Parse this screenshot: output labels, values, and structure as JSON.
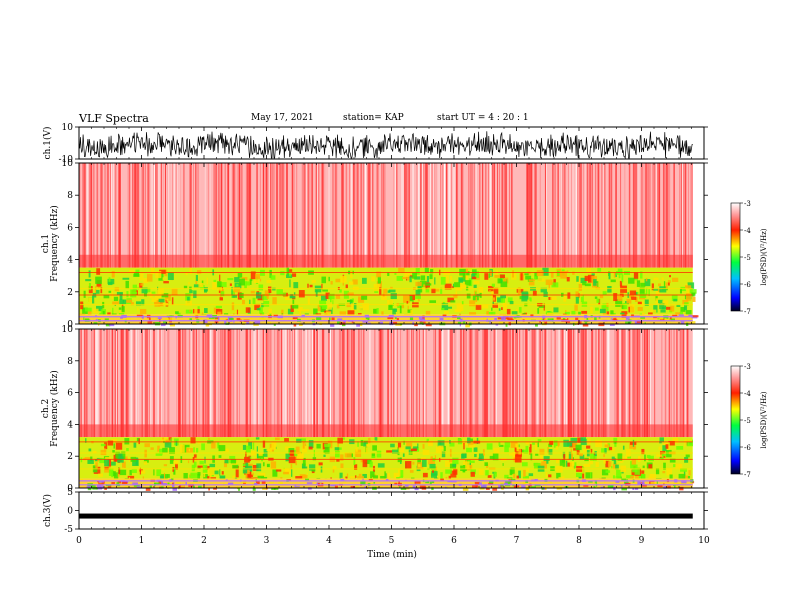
{
  "header": {
    "title": "VLF Spectra",
    "date": "May 17, 2021",
    "station": "station= KAP",
    "start": "start  UT  =   4  : 20 : 1"
  },
  "chart_data": [
    {
      "type": "line",
      "name": "ch1-waveform",
      "ylabel": "ch.1(V)",
      "ylim": [
        -10,
        10
      ],
      "y_ticks": [
        "10",
        "-10"
      ],
      "x_range_min": [
        0,
        9.82
      ]
    },
    {
      "type": "heatmap",
      "name": "ch1-spectrogram",
      "ylabel_lines": [
        "ch.1",
        "Frequency (kHz)"
      ],
      "ylim": [
        0,
        10
      ],
      "y_ticks": [
        "10",
        "8",
        "6",
        "4",
        "2",
        "0"
      ],
      "x_range_min": [
        0,
        9.82
      ],
      "bands_khz": [
        {
          "from": 0.0,
          "to": 0.6,
          "level": "mixed"
        },
        {
          "from": 0.6,
          "to": 3.5,
          "level": "green-yellow"
        },
        {
          "from": 3.5,
          "to": 10.0,
          "level": "red-speckle"
        }
      ],
      "colorbar": {
        "label": "log(PSD)(V²/Hz)",
        "ticks": [
          "-3",
          "-4",
          "-5",
          "-6",
          "-7"
        ],
        "range": [
          -7,
          -3
        ]
      }
    },
    {
      "type": "heatmap",
      "name": "ch2-spectrogram",
      "ylabel_lines": [
        "ch.2",
        "Frequency (kHz)"
      ],
      "ylim": [
        0,
        10
      ],
      "y_ticks": [
        "10",
        "8",
        "6",
        "4",
        "2",
        "0"
      ],
      "x_range_min": [
        0,
        9.82
      ],
      "bands_khz": [
        {
          "from": 0.0,
          "to": 0.6,
          "level": "mixed"
        },
        {
          "from": 0.6,
          "to": 3.2,
          "level": "green-yellow"
        },
        {
          "from": 3.2,
          "to": 10.0,
          "level": "red-speckle"
        }
      ],
      "colorbar": {
        "label": "log(PSD)(V²/Hz)",
        "ticks": [
          "-3",
          "-4",
          "-5",
          "-6",
          "-7"
        ],
        "range": [
          -7,
          -3
        ]
      }
    },
    {
      "type": "line",
      "name": "ch3-waveform",
      "ylabel": "ch.3(V)",
      "ylim": [
        -5,
        5
      ],
      "y_ticks": [
        "5",
        "0",
        "-5"
      ],
      "x_range_min": [
        0,
        9.82
      ],
      "level": -1.5
    }
  ],
  "xaxis": {
    "label": "Time  (min)",
    "ticks": [
      "0",
      "1",
      "2",
      "3",
      "4",
      "5",
      "6",
      "7",
      "8",
      "9",
      "10"
    ],
    "range": [
      0,
      10
    ]
  },
  "colors": {
    "red": "#ff2020",
    "yellow": "#ffe000",
    "green": "#30e000",
    "cyan": "#00c8d0",
    "blue": "#0010ff",
    "black": "#000000"
  }
}
